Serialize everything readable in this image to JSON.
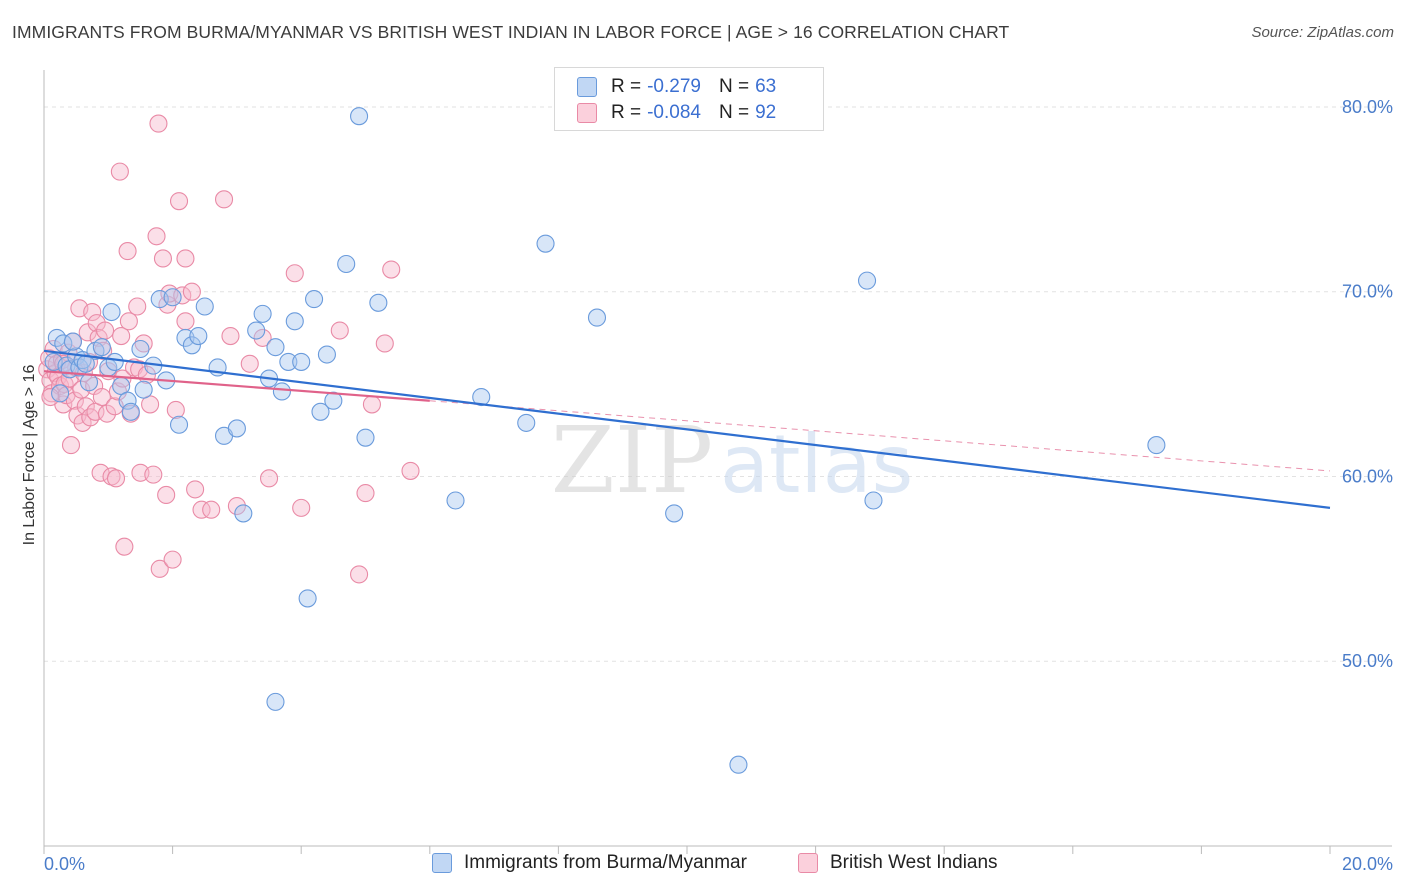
{
  "header": {
    "title": "IMMIGRANTS FROM BURMA/MYANMAR VS BRITISH WEST INDIAN IN LABOR FORCE | AGE > 16 CORRELATION CHART",
    "source": "Source: ZipAtlas.com"
  },
  "legend": {
    "series1": {
      "r_label": "R =",
      "r_value": "-0.279",
      "n_label": "N =",
      "n_value": "63"
    },
    "series2": {
      "r_label": "R =",
      "r_value": "-0.084",
      "n_label": "N =",
      "n_value": "92"
    }
  },
  "bottom_legend": {
    "series1_label": "Immigrants from Burma/Myanmar",
    "series2_label": "British West Indians"
  },
  "watermark": {
    "zip": "ZIP",
    "atlas": "atlas"
  },
  "colors": {
    "series1_fill": "#a9c8f0",
    "series1_stroke": "#6a9bdc",
    "series1_line": "#2f6fd0",
    "series2_fill": "#f7b9cb",
    "series2_stroke": "#e98aa6",
    "series2_line": "#e0628a",
    "tick_label": "#4a7cc9",
    "grid": "#e2e2e2"
  },
  "chart_data": {
    "type": "scatter",
    "title": "IMMIGRANTS FROM BURMA/MYANMAR VS BRITISH WEST INDIAN IN LABOR FORCE | AGE > 16 CORRELATION CHART",
    "xlabel": "",
    "ylabel": "In Labor Force | Age > 16",
    "xlim": [
      0,
      20
    ],
    "ylim": [
      40,
      82
    ],
    "x_unit": "%",
    "y_unit": "%",
    "x_ticks": [
      0,
      20
    ],
    "x_tick_labels": [
      "0.0%",
      "20.0%"
    ],
    "y_ticks": [
      50,
      60,
      70,
      80
    ],
    "y_tick_labels": [
      "50.0%",
      "60.0%",
      "70.0%",
      "80.0%"
    ],
    "grid": true,
    "legend_position": "top-center",
    "series": [
      {
        "name": "Immigrants from Burma/Myanmar",
        "r": -0.279,
        "n": 63,
        "trend": {
          "x0": 0,
          "y0": 66.8,
          "x1": 20,
          "y1": 58.3,
          "style": "solid"
        },
        "points": [
          [
            0.15,
            66.2
          ],
          [
            0.2,
            67.5
          ],
          [
            0.3,
            67.2
          ],
          [
            0.35,
            66.0
          ],
          [
            0.4,
            65.8
          ],
          [
            0.5,
            66.5
          ],
          [
            0.55,
            65.9
          ],
          [
            0.6,
            66.3
          ],
          [
            0.7,
            65.1
          ],
          [
            0.8,
            66.8
          ],
          [
            0.9,
            67.0
          ],
          [
            1.0,
            65.9
          ],
          [
            1.1,
            66.2
          ],
          [
            1.2,
            64.9
          ],
          [
            1.3,
            64.1
          ],
          [
            1.35,
            63.5
          ],
          [
            1.5,
            66.9
          ],
          [
            1.7,
            66.0
          ],
          [
            1.8,
            69.6
          ],
          [
            1.9,
            65.2
          ],
          [
            2.0,
            69.7
          ],
          [
            2.1,
            62.8
          ],
          [
            2.2,
            67.5
          ],
          [
            2.3,
            67.1
          ],
          [
            2.4,
            67.6
          ],
          [
            2.5,
            69.2
          ],
          [
            2.7,
            65.9
          ],
          [
            2.8,
            62.2
          ],
          [
            3.0,
            62.6
          ],
          [
            3.1,
            58.0
          ],
          [
            3.3,
            67.9
          ],
          [
            3.4,
            68.8
          ],
          [
            3.5,
            65.3
          ],
          [
            3.6,
            67.0
          ],
          [
            3.7,
            64.6
          ],
          [
            3.8,
            66.2
          ],
          [
            3.9,
            68.4
          ],
          [
            4.0,
            66.2
          ],
          [
            4.1,
            53.4
          ],
          [
            4.2,
            69.6
          ],
          [
            4.3,
            63.5
          ],
          [
            4.4,
            66.6
          ],
          [
            4.5,
            64.1
          ],
          [
            4.7,
            71.5
          ],
          [
            4.9,
            79.5
          ],
          [
            5.0,
            62.1
          ],
          [
            5.2,
            69.4
          ],
          [
            3.6,
            47.8
          ],
          [
            6.4,
            58.7
          ],
          [
            6.8,
            64.3
          ],
          [
            7.5,
            62.9
          ],
          [
            7.8,
            72.6
          ],
          [
            8.6,
            68.6
          ],
          [
            9.8,
            58.0
          ],
          [
            10.8,
            44.4
          ],
          [
            12.8,
            70.6
          ],
          [
            12.9,
            58.7
          ],
          [
            17.3,
            61.7
          ],
          [
            0.25,
            64.5
          ],
          [
            0.45,
            67.3
          ],
          [
            1.05,
            68.9
          ],
          [
            1.55,
            64.7
          ],
          [
            0.65,
            66.1
          ]
        ]
      },
      {
        "name": "British West Indians",
        "r": -0.084,
        "n": 92,
        "trend": {
          "x0": 0,
          "y0": 65.7,
          "x1": 6.0,
          "y1": 64.1,
          "style": "solid"
        },
        "trend_extended": {
          "x0": 6.0,
          "y0": 64.1,
          "x1": 20,
          "y1": 60.3,
          "style": "dashed"
        },
        "points": [
          [
            0.05,
            65.8
          ],
          [
            0.08,
            66.4
          ],
          [
            0.1,
            65.2
          ],
          [
            0.12,
            64.5
          ],
          [
            0.15,
            66.9
          ],
          [
            0.18,
            65.6
          ],
          [
            0.2,
            66.1
          ],
          [
            0.22,
            65.4
          ],
          [
            0.25,
            64.9
          ],
          [
            0.28,
            66.3
          ],
          [
            0.3,
            63.9
          ],
          [
            0.32,
            65.0
          ],
          [
            0.35,
            64.4
          ],
          [
            0.38,
            66.7
          ],
          [
            0.4,
            65.3
          ],
          [
            0.42,
            61.7
          ],
          [
            0.45,
            67.3
          ],
          [
            0.48,
            64.1
          ],
          [
            0.5,
            65.9
          ],
          [
            0.52,
            63.3
          ],
          [
            0.55,
            69.1
          ],
          [
            0.58,
            64.7
          ],
          [
            0.6,
            62.9
          ],
          [
            0.62,
            65.6
          ],
          [
            0.65,
            63.8
          ],
          [
            0.68,
            67.8
          ],
          [
            0.7,
            66.2
          ],
          [
            0.72,
            63.2
          ],
          [
            0.75,
            68.9
          ],
          [
            0.78,
            64.9
          ],
          [
            0.8,
            63.5
          ],
          [
            0.82,
            68.3
          ],
          [
            0.85,
            67.5
          ],
          [
            0.88,
            60.2
          ],
          [
            0.9,
            64.3
          ],
          [
            0.92,
            66.8
          ],
          [
            0.95,
            67.9
          ],
          [
            0.98,
            63.4
          ],
          [
            1.0,
            65.7
          ],
          [
            1.05,
            60.0
          ],
          [
            1.1,
            63.8
          ],
          [
            1.12,
            59.9
          ],
          [
            1.15,
            64.6
          ],
          [
            1.18,
            76.5
          ],
          [
            1.2,
            67.6
          ],
          [
            1.22,
            65.3
          ],
          [
            1.25,
            56.2
          ],
          [
            1.3,
            72.2
          ],
          [
            1.32,
            68.4
          ],
          [
            1.35,
            63.4
          ],
          [
            1.4,
            65.9
          ],
          [
            1.45,
            69.2
          ],
          [
            1.48,
            65.8
          ],
          [
            1.5,
            60.2
          ],
          [
            1.55,
            67.2
          ],
          [
            1.6,
            65.5
          ],
          [
            1.65,
            63.9
          ],
          [
            1.7,
            60.1
          ],
          [
            1.75,
            73.0
          ],
          [
            1.78,
            79.1
          ],
          [
            1.8,
            55.0
          ],
          [
            1.85,
            71.8
          ],
          [
            1.9,
            59.0
          ],
          [
            1.92,
            69.3
          ],
          [
            1.95,
            69.9
          ],
          [
            2.0,
            55.5
          ],
          [
            2.05,
            63.6
          ],
          [
            2.1,
            74.9
          ],
          [
            2.15,
            69.8
          ],
          [
            2.2,
            71.8
          ],
          [
            2.3,
            70.0
          ],
          [
            2.35,
            59.3
          ],
          [
            2.45,
            58.2
          ],
          [
            2.6,
            58.2
          ],
          [
            2.8,
            75.0
          ],
          [
            2.9,
            67.6
          ],
          [
            3.0,
            58.4
          ],
          [
            3.2,
            66.1
          ],
          [
            3.4,
            67.5
          ],
          [
            3.5,
            59.9
          ],
          [
            3.9,
            71.0
          ],
          [
            4.0,
            58.3
          ],
          [
            4.6,
            67.9
          ],
          [
            4.9,
            54.7
          ],
          [
            5.0,
            59.1
          ],
          [
            5.1,
            63.9
          ],
          [
            5.3,
            67.2
          ],
          [
            5.4,
            71.2
          ],
          [
            5.7,
            60.3
          ],
          [
            0.1,
            64.3
          ],
          [
            0.3,
            66.1
          ],
          [
            2.2,
            68.4
          ]
        ]
      }
    ]
  }
}
